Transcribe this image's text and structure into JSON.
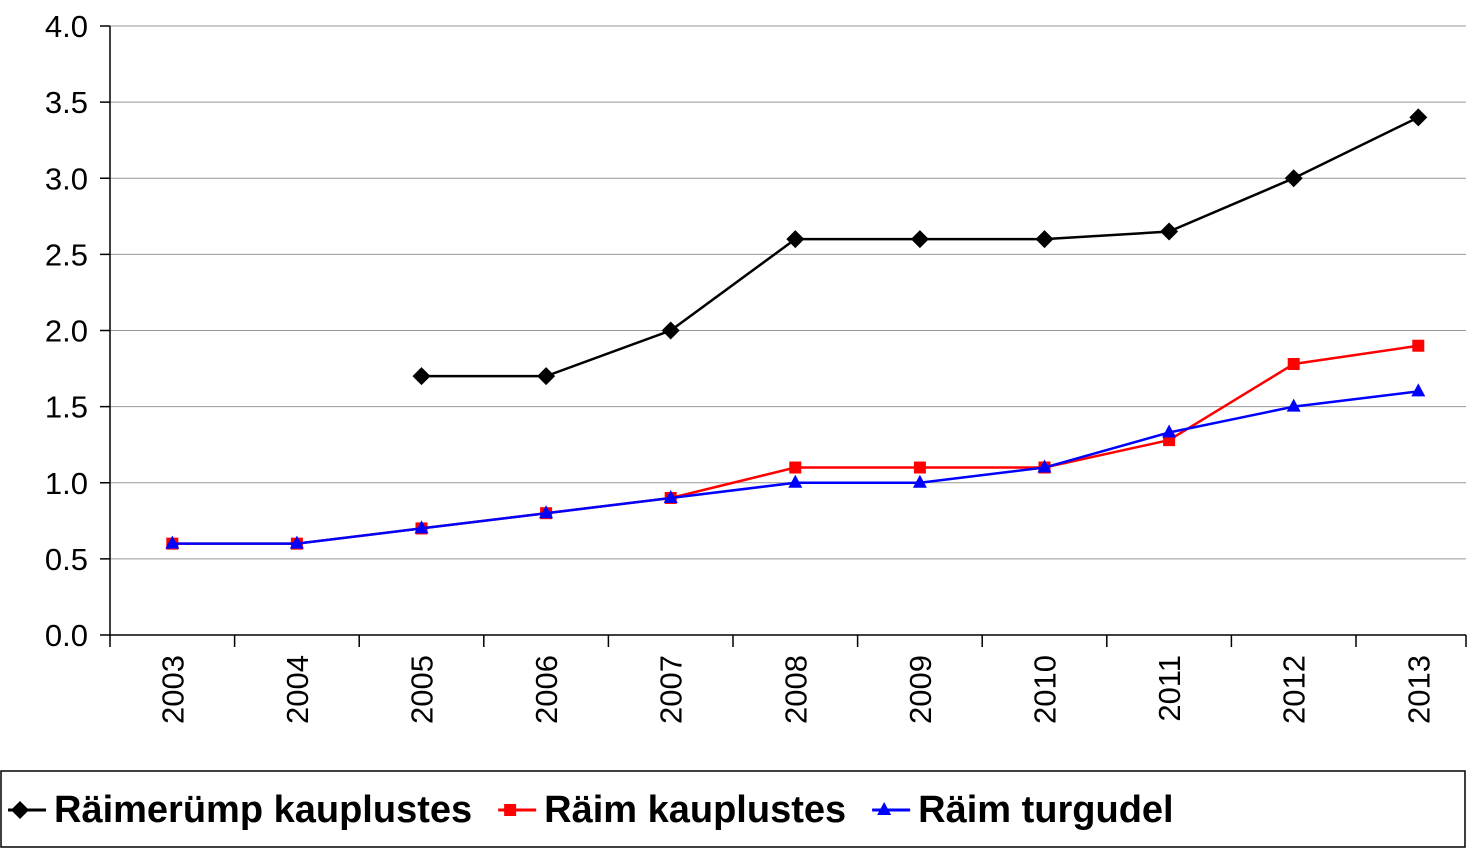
{
  "chart_data": {
    "type": "line",
    "categories": [
      "2003",
      "2004",
      "2005",
      "2006",
      "2007",
      "2008",
      "2009",
      "2010",
      "2011",
      "2012",
      "2013"
    ],
    "series": [
      {
        "name": "Räimerümp kauplustes",
        "color": "#000000",
        "marker": "diamond",
        "values": [
          null,
          null,
          1.7,
          1.7,
          2.0,
          2.6,
          2.6,
          2.6,
          2.65,
          3.0,
          3.4
        ]
      },
      {
        "name": "Räim kauplustes",
        "color": "#ff0000",
        "marker": "square",
        "values": [
          0.6,
          0.6,
          0.7,
          0.8,
          0.9,
          1.1,
          1.1,
          1.1,
          1.28,
          1.78,
          1.9
        ]
      },
      {
        "name": "Räim turgudel",
        "color": "#0000ff",
        "marker": "triangle",
        "values": [
          0.6,
          0.6,
          0.7,
          0.8,
          0.9,
          1.0,
          1.0,
          1.1,
          1.33,
          1.5,
          1.6
        ]
      }
    ],
    "ylim": [
      0,
      4
    ],
    "yticks": [
      {
        "value": 0,
        "label": "0.0"
      },
      {
        "value": 0.5,
        "label": "0.5"
      },
      {
        "value": 1,
        "label": "1.0"
      },
      {
        "value": 1.5,
        "label": "1.5"
      },
      {
        "value": 2,
        "label": "2.0"
      },
      {
        "value": 2.5,
        "label": "2.5"
      },
      {
        "value": 3,
        "label": "3.0"
      },
      {
        "value": 3.5,
        "label": "3.5"
      },
      {
        "value": 4,
        "label": "4.0"
      }
    ],
    "grid": true,
    "legend": "bottom"
  }
}
